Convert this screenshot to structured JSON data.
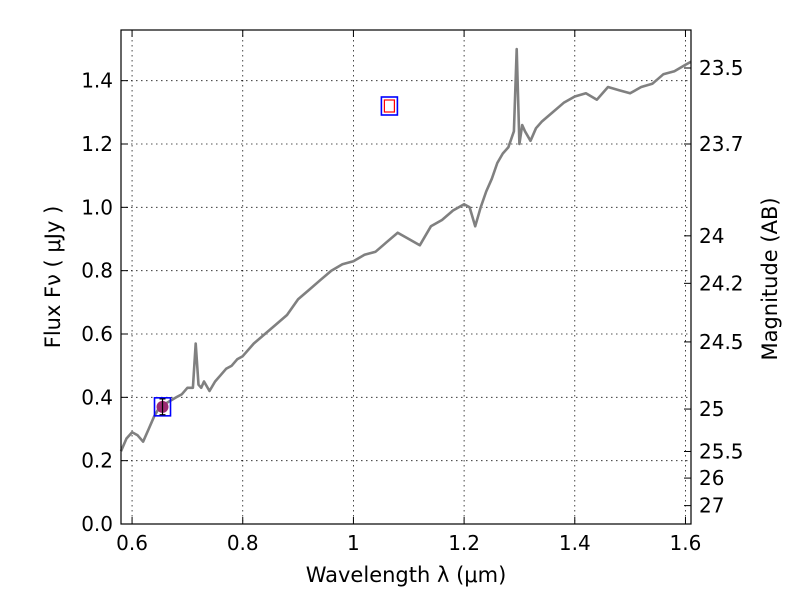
{
  "chart_data": {
    "type": "line",
    "title": "",
    "xlabel": "Wavelength  λ (μm)",
    "ylabel": "Flux  Fν  ( μJy )",
    "y2label": "Magnitude (AB)",
    "xlim": [
      0.58,
      1.61
    ],
    "ylim": [
      0.0,
      1.56
    ],
    "grid": true,
    "x_ticks": [
      0.6,
      0.8,
      1.0,
      1.2,
      1.4,
      1.6
    ],
    "x_tick_labels": [
      "0.6",
      "0.8",
      "1",
      "1.2",
      "1.4",
      "1.6"
    ],
    "y_ticks": [
      0.0,
      0.2,
      0.4,
      0.6,
      0.8,
      1.0,
      1.2,
      1.4
    ],
    "y_tick_labels": [
      "0.0",
      "0.2",
      "0.4",
      "0.6",
      "0.8",
      "1.0",
      "1.2",
      "1.4"
    ],
    "mag_ticks": [
      {
        "label": "23.5",
        "flux": 1.44
      },
      {
        "label": "23.7",
        "flux": 1.2
      },
      {
        "label": "24",
        "flux": 0.91
      },
      {
        "label": "24.2",
        "flux": 0.76
      },
      {
        "label": "24.5",
        "flux": 0.575
      },
      {
        "label": "25",
        "flux": 0.363
      },
      {
        "label": "25.5",
        "flux": 0.229
      },
      {
        "label": "26",
        "flux": 0.145
      },
      {
        "label": "27",
        "flux": 0.058
      }
    ],
    "series": [
      {
        "color": "#808080",
        "x": [
          0.58,
          0.59,
          0.6,
          0.61,
          0.62,
          0.63,
          0.64,
          0.65,
          0.66,
          0.67,
          0.68,
          0.69,
          0.7,
          0.71,
          0.715,
          0.72,
          0.725,
          0.73,
          0.74,
          0.75,
          0.76,
          0.77,
          0.78,
          0.79,
          0.8,
          0.82,
          0.84,
          0.86,
          0.88,
          0.9,
          0.92,
          0.94,
          0.96,
          0.98,
          1.0,
          1.02,
          1.04,
          1.06,
          1.08,
          1.1,
          1.12,
          1.14,
          1.16,
          1.18,
          1.2,
          1.21,
          1.22,
          1.23,
          1.24,
          1.25,
          1.26,
          1.27,
          1.28,
          1.29,
          1.295,
          1.3,
          1.305,
          1.31,
          1.32,
          1.33,
          1.34,
          1.36,
          1.38,
          1.4,
          1.42,
          1.44,
          1.46,
          1.48,
          1.5,
          1.52,
          1.54,
          1.56,
          1.58,
          1.6,
          1.61
        ],
        "y": [
          0.23,
          0.27,
          0.29,
          0.28,
          0.26,
          0.3,
          0.34,
          0.37,
          0.38,
          0.39,
          0.4,
          0.41,
          0.43,
          0.43,
          0.57,
          0.44,
          0.43,
          0.45,
          0.42,
          0.45,
          0.47,
          0.49,
          0.5,
          0.52,
          0.53,
          0.57,
          0.6,
          0.63,
          0.66,
          0.71,
          0.74,
          0.77,
          0.8,
          0.82,
          0.83,
          0.85,
          0.86,
          0.89,
          0.92,
          0.9,
          0.88,
          0.94,
          0.96,
          0.99,
          1.01,
          1.0,
          0.94,
          1.0,
          1.05,
          1.09,
          1.14,
          1.17,
          1.19,
          1.24,
          1.5,
          1.2,
          1.26,
          1.24,
          1.21,
          1.25,
          1.27,
          1.3,
          1.33,
          1.35,
          1.36,
          1.34,
          1.38,
          1.37,
          1.36,
          1.38,
          1.39,
          1.42,
          1.43,
          1.45,
          1.46
        ]
      }
    ],
    "markers": [
      {
        "x": 0.655,
        "y": 0.37,
        "outline": "#0000ff",
        "fill": "#9b2a72",
        "error": 0.025
      },
      {
        "x": 1.065,
        "y": 1.32,
        "outline": "#0000ff",
        "fill": "#ffffff",
        "inner": "#ff0000"
      }
    ]
  }
}
